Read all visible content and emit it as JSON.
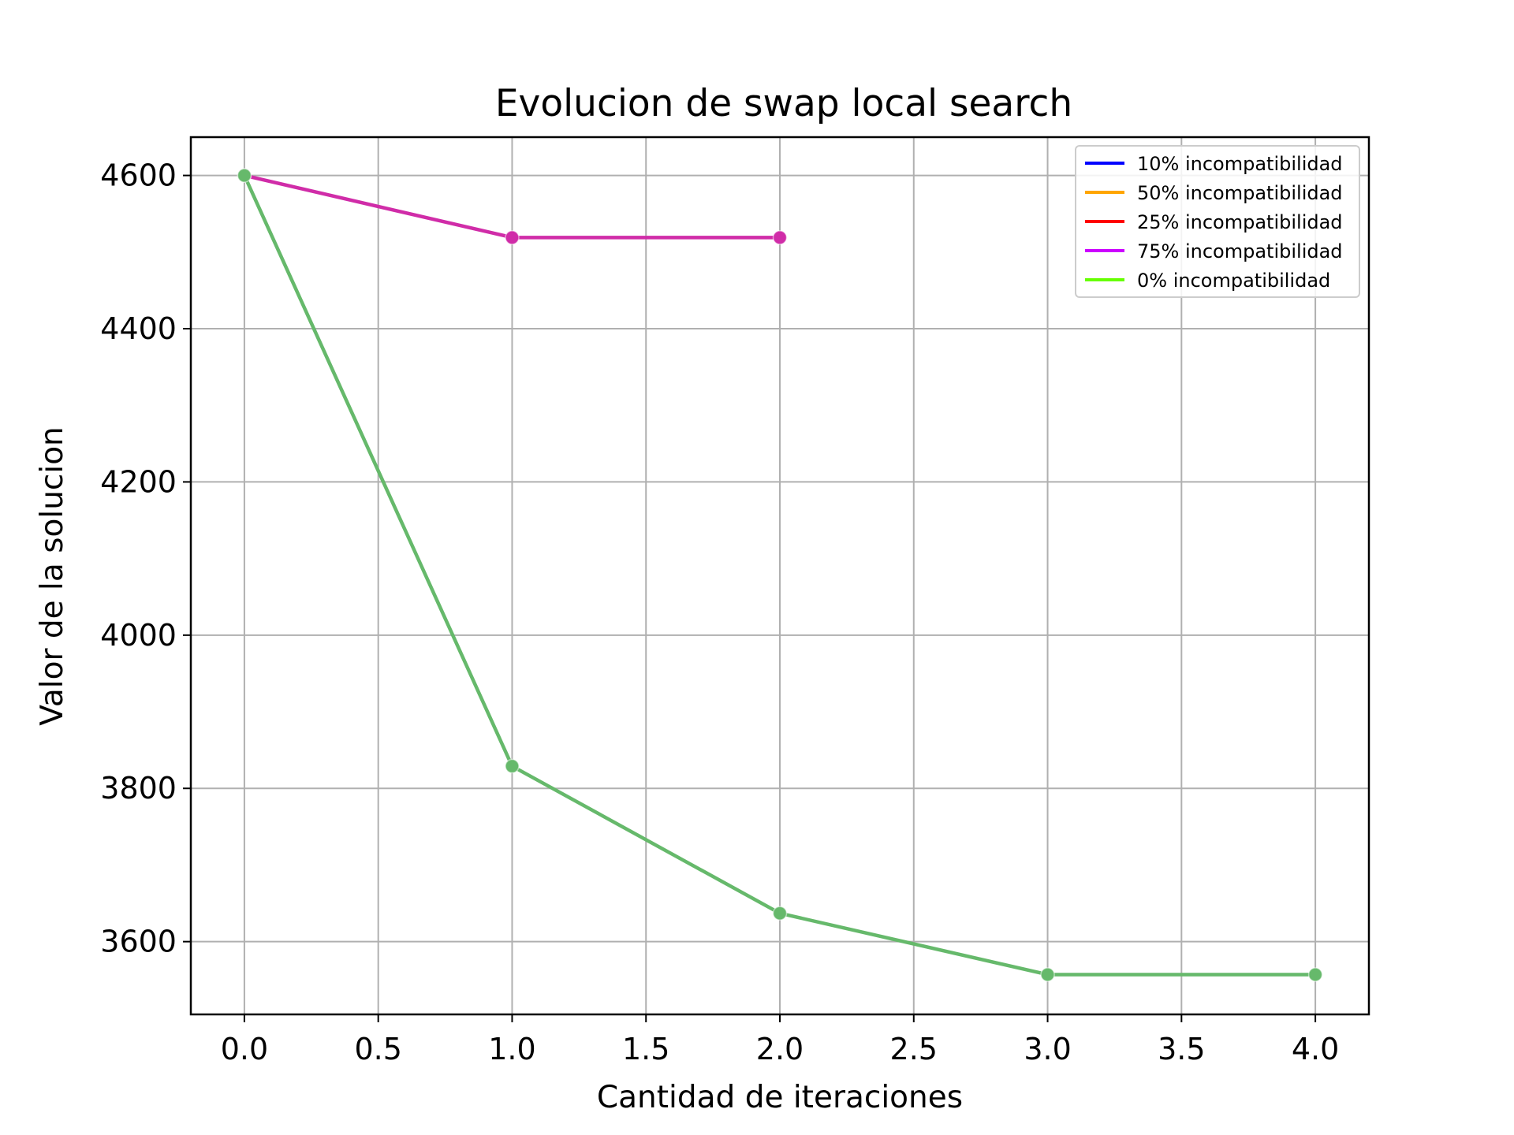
{
  "chart_data": {
    "type": "line",
    "title": "Evolucion de swap local search",
    "xlabel": "Cantidad de iteraciones",
    "ylabel": "Valor de la solucion",
    "xlim": [
      -0.2,
      4.2
    ],
    "ylim": [
      3505,
      4650
    ],
    "xticks": [
      "0.0",
      "0.5",
      "1.0",
      "1.5",
      "2.0",
      "2.5",
      "3.0",
      "3.5",
      "4.0"
    ],
    "yticks": [
      "3600",
      "3800",
      "4000",
      "4200",
      "4400",
      "4600"
    ],
    "grid": true,
    "legend_position": "top-right",
    "series": [
      {
        "name": "10% incompatibilidad",
        "color": "#0000ff",
        "x": [
          0,
          1,
          2
        ],
        "y": [
          4600,
          4519,
          4519
        ]
      },
      {
        "name": "50% incompatibilidad",
        "color": "#ffa500",
        "x": [
          0,
          1,
          2
        ],
        "y": [
          4600,
          4519,
          4519
        ]
      },
      {
        "name": "25% incompatibilidad",
        "color": "#ff0000",
        "x": [
          0,
          1,
          2
        ],
        "y": [
          4600,
          4519,
          4519
        ]
      },
      {
        "name": "75% incompatibilidad",
        "color": "#cc00ff",
        "x": [
          0,
          1,
          2
        ],
        "y": [
          4600,
          4519,
          4519
        ]
      },
      {
        "name": "0% incompatibilidad",
        "color": "#66ff00",
        "x": [
          0,
          1,
          2,
          3,
          4
        ],
        "y": [
          4600,
          3829,
          3637,
          3557,
          3557
        ]
      }
    ],
    "visible_lines": [
      {
        "series": "75% incompatibilidad",
        "color": "#d02ca8",
        "x": [
          0,
          1,
          2
        ],
        "y": [
          4600,
          4519,
          4519
        ]
      },
      {
        "series": "0% incompatibilidad",
        "color": "#66b96b",
        "x": [
          0,
          1,
          2,
          3,
          4
        ],
        "y": [
          4600,
          3829,
          3637,
          3557,
          3557
        ]
      }
    ]
  }
}
